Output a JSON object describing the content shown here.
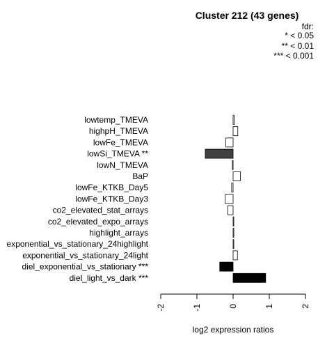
{
  "chart_data": {
    "type": "bar",
    "orientation": "horizontal",
    "title": "Cluster 212 (43 genes)",
    "xlabel": "log2 expression ratios",
    "xlim": [
      -2,
      2
    ],
    "xticks": [
      "-2",
      "-1",
      "0",
      "1",
      "2"
    ],
    "legend": {
      "title": "fdr:",
      "entries": [
        "* < 0.05",
        "** < 0.01",
        "*** < 0.001"
      ],
      "position": "top-right"
    },
    "categories": [
      "lowtemp_TMEVA",
      "highpH_TMEVA",
      "lowFe_TMEVA",
      "lowSi_TMEVA **",
      "lowN_TMEVA",
      "BaP",
      "lowFe_KTKB_Day5",
      "lowFe_KTKB_Day3",
      "co2_elevated_stat_arrays",
      "co2_elevated_expo_arrays",
      "highlight_arrays",
      "exponential_vs_stationary_24highlight",
      "exponential_vs_stationary_24light",
      "diel_exponential_vs_stationary ***",
      "diel_light_vs_dark ***"
    ],
    "values": [
      0.03,
      0.13,
      -0.2,
      -0.77,
      -0.02,
      0.2,
      -0.04,
      -0.22,
      -0.15,
      0.0,
      0.02,
      0.0,
      0.12,
      -0.37,
      0.9
    ],
    "bar_colors": [
      "#ffffff",
      "#ffffff",
      "#ffffff",
      "#404040",
      "#ffffff",
      "#ffffff",
      "#ffffff",
      "#ffffff",
      "#ffffff",
      "#ffffff",
      "#ffffff",
      "#ffffff",
      "#ffffff",
      "#000000",
      "#000000"
    ]
  }
}
